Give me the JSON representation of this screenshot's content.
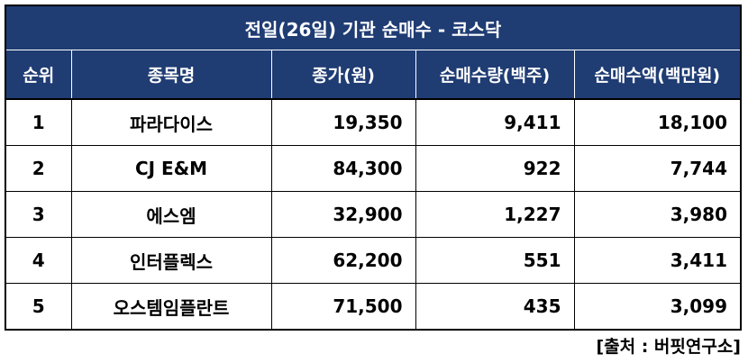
{
  "title": "전일(26일) 기관 순매수 - 코스닥",
  "headers": {
    "rank": "순위",
    "name": "종목명",
    "price": "종가(원)",
    "qty": "순매수량(백주)",
    "amount": "순매수액(백만원)"
  },
  "rows": [
    {
      "rank": "1",
      "name": "파라다이스",
      "price": "19,350",
      "qty": "9,411",
      "amount": "18,100"
    },
    {
      "rank": "2",
      "name": "CJ E&M",
      "price": "84,300",
      "qty": "922",
      "amount": "7,744"
    },
    {
      "rank": "3",
      "name": "에스엠",
      "price": "32,900",
      "qty": "1,227",
      "amount": "3,980"
    },
    {
      "rank": "4",
      "name": "인터플렉스",
      "price": "62,200",
      "qty": "551",
      "amount": "3,411"
    },
    {
      "rank": "5",
      "name": "오스템임플란트",
      "price": "71,500",
      "qty": "435",
      "amount": "3,099"
    }
  ],
  "source": "[출처 : 버핏연구소]",
  "colors": {
    "header_bg": "#1f3c73",
    "header_text": "#ffffff",
    "border": "#000000"
  }
}
